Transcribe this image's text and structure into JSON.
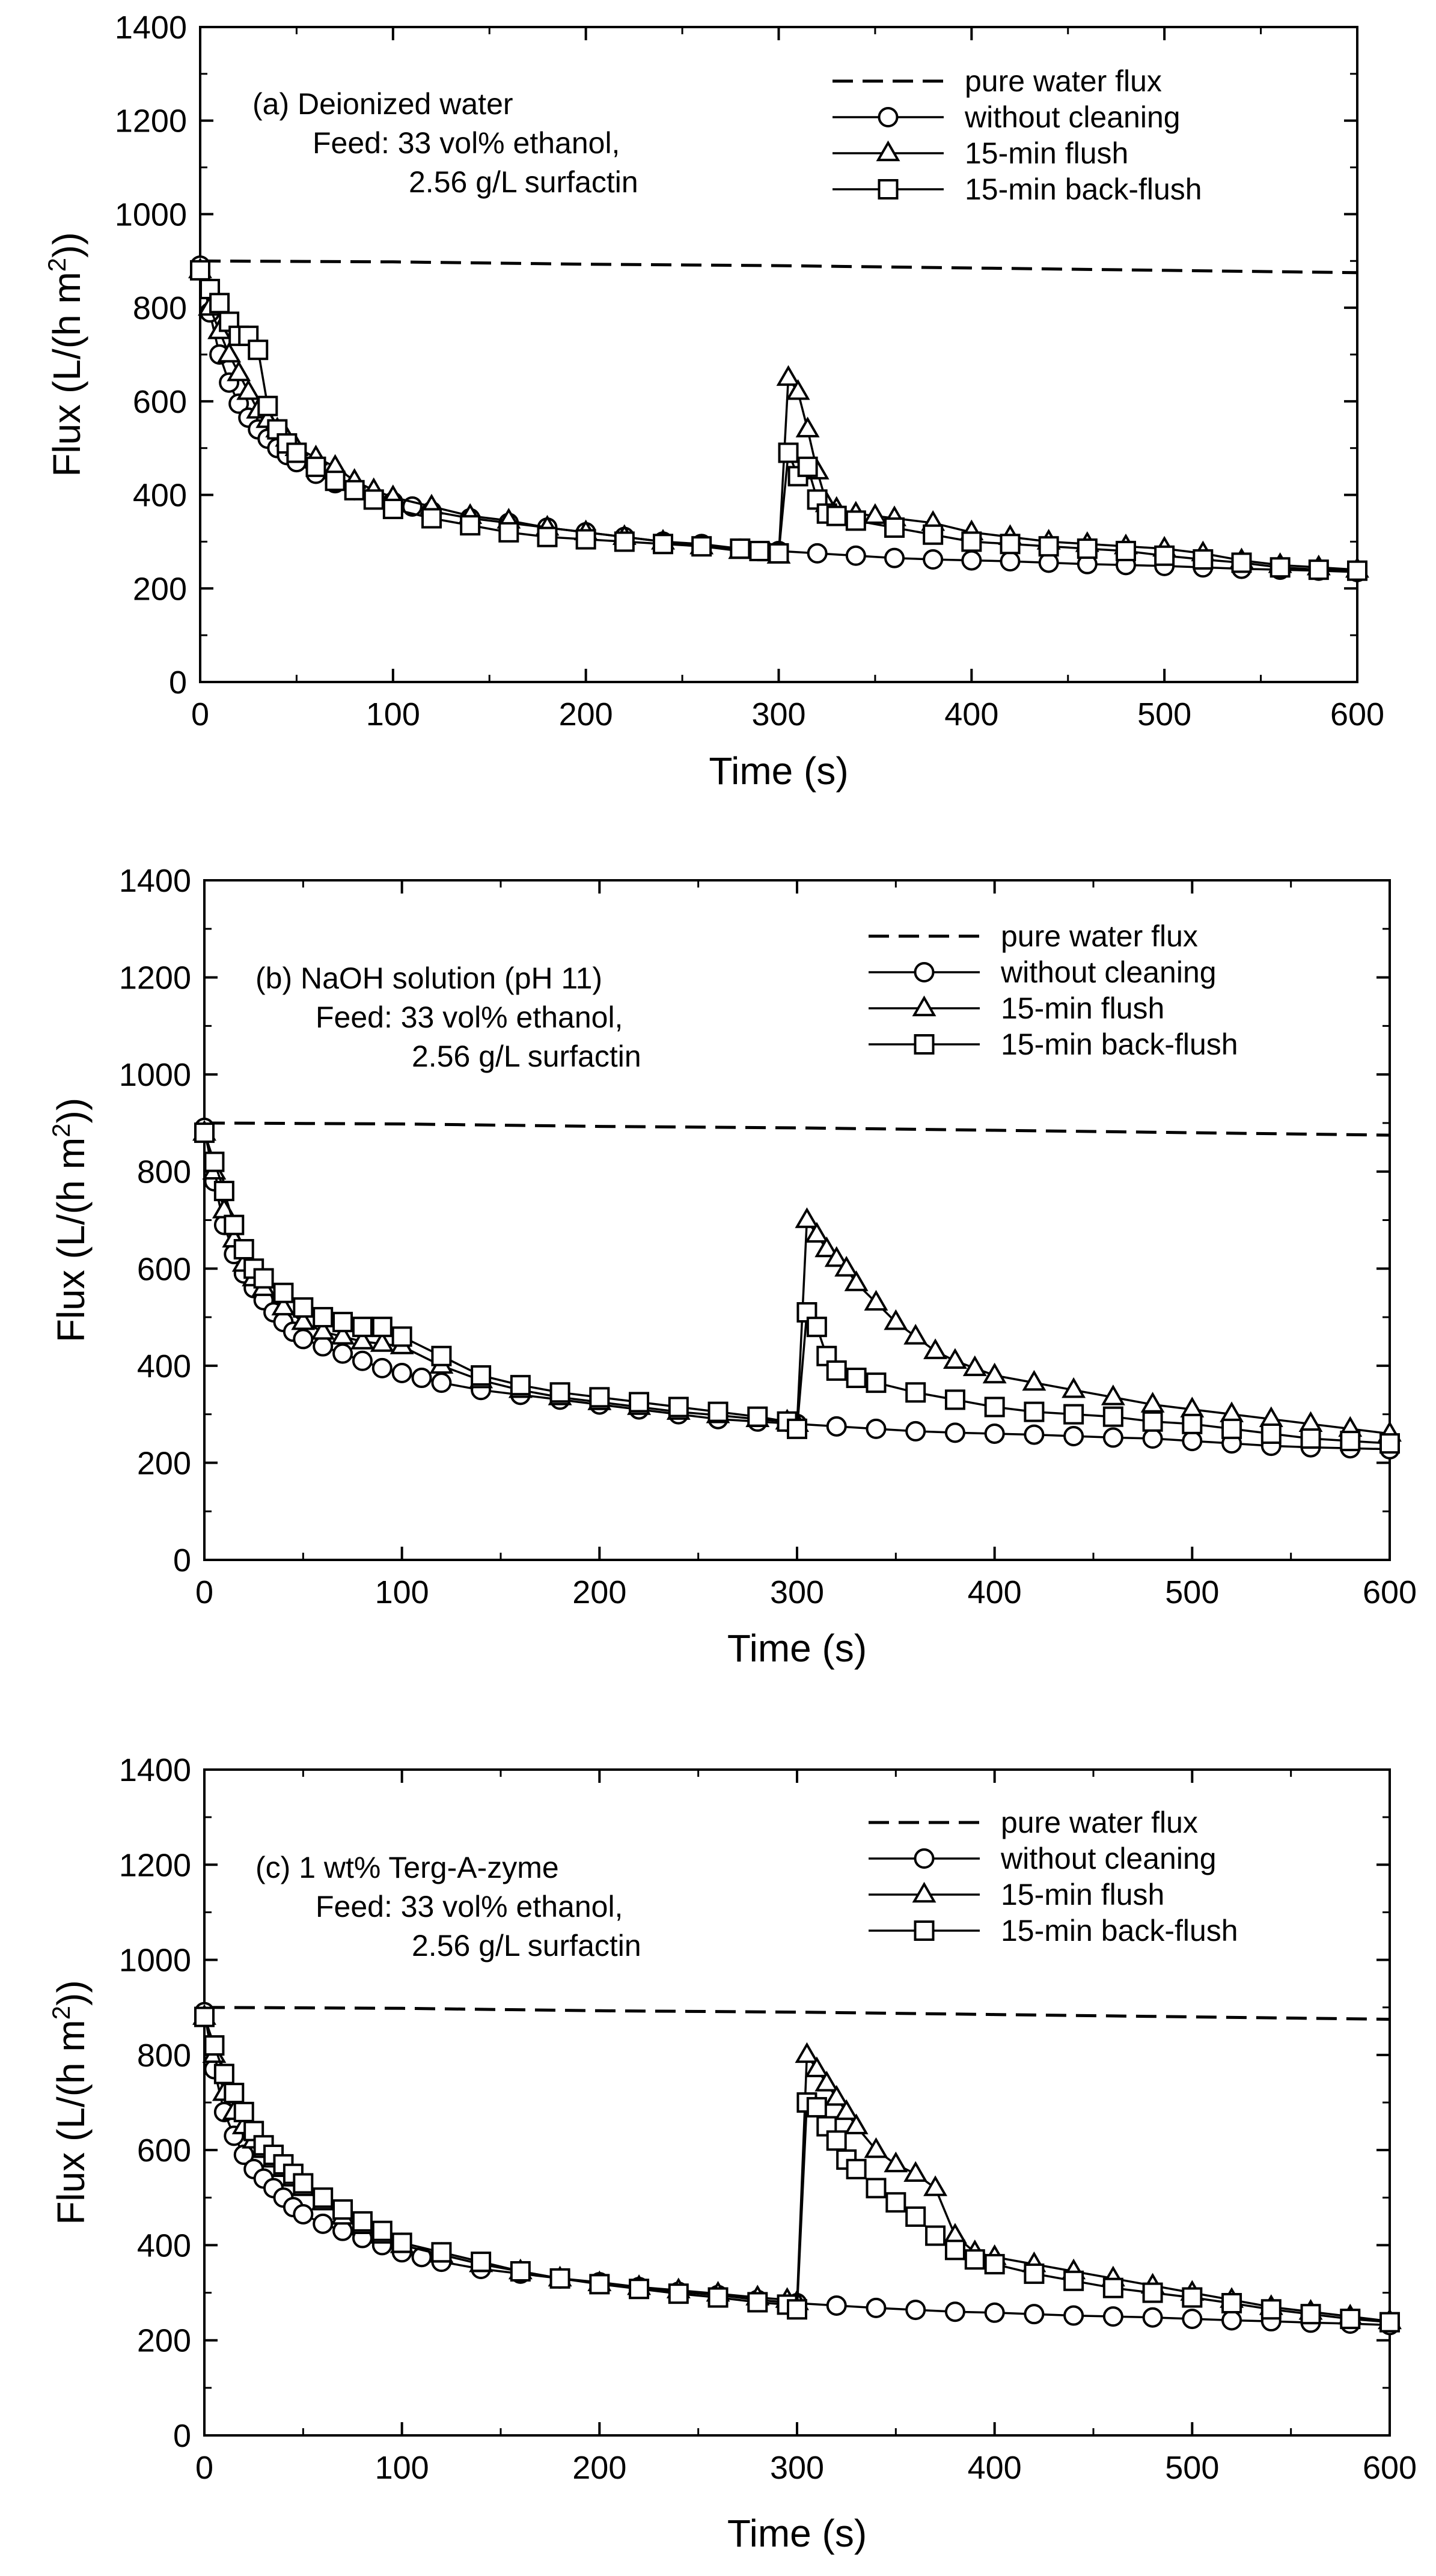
{
  "colors": {
    "ink": "#000000",
    "background": "#ffffff",
    "marker_fill": "#ffffff"
  },
  "chart_data": [
    {
      "id": "a",
      "type": "line",
      "xlabel": "Time (s)",
      "ylabel_main": "Flux (L/(h m",
      "ylabel_sup": "2",
      "ylabel_tail": "))",
      "xlim": [
        0,
        600
      ],
      "ylim": [
        0,
        1400
      ],
      "xticks": [
        0,
        100,
        200,
        300,
        400,
        500,
        600
      ],
      "yticks": [
        0,
        200,
        400,
        600,
        800,
        1000,
        1200,
        1400
      ],
      "annotations": [
        "(a) Deionized water",
        "Feed: 33 vol% ethanol,",
        "2.56 g/L surfactin"
      ],
      "legend": [
        "pure water flux",
        "without cleaning",
        "15-min flush",
        "15-min back-flush"
      ],
      "series": [
        {
          "name": "pure water flux",
          "style": "dashed",
          "x": [
            0,
            100,
            200,
            300,
            400,
            500,
            600
          ],
          "y": [
            900,
            898,
            893,
            890,
            885,
            880,
            875
          ]
        },
        {
          "name": "without cleaning",
          "marker": "circle",
          "x": [
            0,
            5,
            10,
            15,
            20,
            25,
            30,
            35,
            40,
            45,
            50,
            60,
            70,
            80,
            90,
            100,
            110,
            120,
            140,
            160,
            180,
            200,
            220,
            240,
            260,
            280,
            300,
            320,
            340,
            360,
            380,
            400,
            420,
            440,
            460,
            480,
            500,
            520,
            540,
            560,
            580,
            600
          ],
          "y": [
            890,
            790,
            700,
            640,
            595,
            565,
            540,
            520,
            500,
            485,
            470,
            445,
            425,
            410,
            395,
            385,
            375,
            365,
            350,
            340,
            330,
            320,
            310,
            300,
            295,
            285,
            280,
            275,
            270,
            265,
            262,
            260,
            258,
            255,
            252,
            250,
            248,
            245,
            242,
            240,
            238,
            235
          ]
        },
        {
          "name": "15-min flush",
          "marker": "triangle",
          "x": [
            0,
            5,
            10,
            15,
            20,
            25,
            30,
            35,
            40,
            45,
            50,
            60,
            70,
            80,
            90,
            100,
            120,
            140,
            160,
            180,
            200,
            220,
            240,
            260,
            280,
            295,
            300,
            305,
            310,
            315,
            320,
            325,
            330,
            340,
            350,
            360,
            380,
            400,
            420,
            440,
            460,
            480,
            500,
            520,
            540,
            560,
            580,
            600
          ],
          "y": [
            880,
            800,
            750,
            700,
            660,
            620,
            580,
            560,
            540,
            520,
            500,
            480,
            460,
            430,
            410,
            395,
            375,
            355,
            345,
            330,
            320,
            310,
            300,
            290,
            280,
            275,
            270,
            650,
            620,
            540,
            450,
            380,
            370,
            360,
            355,
            350,
            340,
            320,
            310,
            300,
            295,
            290,
            285,
            275,
            260,
            250,
            245,
            240
          ]
        },
        {
          "name": "15-min back-flush",
          "marker": "square",
          "x": [
            0,
            5,
            10,
            15,
            20,
            25,
            30,
            35,
            40,
            45,
            50,
            60,
            70,
            80,
            90,
            100,
            120,
            140,
            160,
            180,
            200,
            220,
            240,
            260,
            280,
            290,
            300,
            305,
            310,
            315,
            320,
            325,
            330,
            340,
            360,
            380,
            400,
            420,
            440,
            460,
            480,
            500,
            520,
            540,
            560,
            580,
            600
          ],
          "y": [
            880,
            840,
            810,
            770,
            740,
            740,
            710,
            590,
            540,
            510,
            490,
            460,
            430,
            410,
            390,
            370,
            350,
            335,
            320,
            310,
            305,
            300,
            295,
            290,
            285,
            280,
            275,
            490,
            440,
            460,
            390,
            360,
            355,
            345,
            330,
            315,
            300,
            295,
            290,
            285,
            280,
            270,
            262,
            255,
            245,
            240,
            238
          ]
        }
      ]
    },
    {
      "id": "b",
      "type": "line",
      "xlabel": "Time (s)",
      "ylabel_main": "Flux (L/(h m",
      "ylabel_sup": "2",
      "ylabel_tail": "))",
      "xlim": [
        0,
        600
      ],
      "ylim": [
        0,
        1400
      ],
      "xticks": [
        0,
        100,
        200,
        300,
        400,
        500,
        600
      ],
      "yticks": [
        0,
        200,
        400,
        600,
        800,
        1000,
        1200,
        1400
      ],
      "annotations": [
        "(b) NaOH solution (pH 11)",
        "Feed: 33 vol% ethanol,",
        "2.56 g/L surfactin"
      ],
      "legend": [
        "pure water flux",
        "without cleaning",
        "15-min flush",
        "15-min back-flush"
      ],
      "series": [
        {
          "name": "pure water flux",
          "style": "dashed",
          "x": [
            0,
            100,
            200,
            300,
            400,
            500,
            600
          ],
          "y": [
            900,
            898,
            893,
            890,
            885,
            880,
            875
          ]
        },
        {
          "name": "without cleaning",
          "marker": "circle",
          "x": [
            0,
            5,
            10,
            15,
            20,
            25,
            30,
            35,
            40,
            45,
            50,
            60,
            70,
            80,
            90,
            100,
            110,
            120,
            140,
            160,
            180,
            200,
            220,
            240,
            260,
            280,
            300,
            320,
            340,
            360,
            380,
            400,
            420,
            440,
            460,
            480,
            500,
            520,
            540,
            560,
            580,
            600
          ],
          "y": [
            890,
            780,
            690,
            630,
            590,
            560,
            535,
            510,
            490,
            470,
            455,
            440,
            425,
            410,
            395,
            385,
            375,
            365,
            350,
            340,
            330,
            320,
            310,
            300,
            290,
            285,
            280,
            275,
            270,
            265,
            262,
            260,
            258,
            255,
            252,
            250,
            245,
            240,
            235,
            232,
            230,
            228
          ]
        },
        {
          "name": "15-min flush",
          "marker": "triangle",
          "x": [
            0,
            5,
            10,
            15,
            20,
            25,
            30,
            40,
            50,
            60,
            70,
            80,
            90,
            100,
            120,
            140,
            160,
            180,
            200,
            220,
            240,
            260,
            280,
            295,
            300,
            305,
            310,
            315,
            320,
            325,
            330,
            340,
            350,
            360,
            370,
            380,
            390,
            400,
            420,
            440,
            460,
            480,
            500,
            520,
            540,
            560,
            580,
            600
          ],
          "y": [
            880,
            800,
            720,
            660,
            610,
            580,
            560,
            520,
            490,
            470,
            460,
            450,
            445,
            440,
            400,
            370,
            350,
            335,
            325,
            315,
            305,
            298,
            290,
            285,
            280,
            700,
            670,
            640,
            620,
            600,
            570,
            530,
            490,
            460,
            430,
            410,
            395,
            380,
            365,
            350,
            335,
            320,
            310,
            300,
            290,
            280,
            270,
            260
          ]
        },
        {
          "name": "15-min back-flush",
          "marker": "square",
          "x": [
            0,
            5,
            10,
            15,
            20,
            25,
            30,
            40,
            50,
            60,
            70,
            80,
            90,
            100,
            120,
            140,
            160,
            180,
            200,
            220,
            240,
            260,
            280,
            295,
            300,
            305,
            310,
            315,
            320,
            330,
            340,
            360,
            380,
            400,
            420,
            440,
            460,
            480,
            500,
            520,
            540,
            560,
            580,
            600
          ],
          "y": [
            880,
            820,
            760,
            690,
            640,
            600,
            580,
            550,
            520,
            500,
            490,
            480,
            480,
            460,
            420,
            380,
            360,
            345,
            335,
            325,
            315,
            305,
            295,
            285,
            270,
            510,
            480,
            420,
            390,
            375,
            365,
            345,
            330,
            315,
            305,
            300,
            295,
            285,
            280,
            270,
            260,
            250,
            245,
            240
          ]
        }
      ]
    },
    {
      "id": "c",
      "type": "line",
      "xlabel": "Time (s)",
      "ylabel_main": "Flux (L/(h m",
      "ylabel_sup": "2",
      "ylabel_tail": "))",
      "xlim": [
        0,
        600
      ],
      "ylim": [
        0,
        1400
      ],
      "xticks": [
        0,
        100,
        200,
        300,
        400,
        500,
        600
      ],
      "yticks": [
        0,
        200,
        400,
        600,
        800,
        1000,
        1200,
        1400
      ],
      "annotations": [
        "(c) 1 wt% Terg-A-zyme",
        "Feed: 33 vol% ethanol,",
        "2.56 g/L surfactin"
      ],
      "legend": [
        "pure water flux",
        "without cleaning",
        "15-min flush",
        "15-min back-flush"
      ],
      "series": [
        {
          "name": "pure water flux",
          "style": "dashed",
          "x": [
            0,
            100,
            200,
            300,
            400,
            500,
            600
          ],
          "y": [
            900,
            898,
            893,
            890,
            885,
            880,
            875
          ]
        },
        {
          "name": "without cleaning",
          "marker": "circle",
          "x": [
            0,
            5,
            10,
            15,
            20,
            25,
            30,
            35,
            40,
            45,
            50,
            60,
            70,
            80,
            90,
            100,
            110,
            120,
            140,
            160,
            180,
            200,
            220,
            240,
            260,
            280,
            300,
            320,
            340,
            360,
            380,
            400,
            420,
            440,
            460,
            480,
            500,
            520,
            540,
            560,
            580,
            600
          ],
          "y": [
            890,
            770,
            680,
            630,
            590,
            560,
            540,
            520,
            500,
            480,
            465,
            445,
            430,
            415,
            400,
            385,
            375,
            365,
            350,
            340,
            330,
            322,
            312,
            302,
            295,
            285,
            278,
            273,
            268,
            264,
            260,
            258,
            255,
            252,
            250,
            248,
            245,
            242,
            240,
            237,
            235,
            232
          ]
        },
        {
          "name": "15-min flush",
          "marker": "triangle",
          "x": [
            0,
            5,
            10,
            15,
            20,
            25,
            30,
            35,
            40,
            45,
            50,
            60,
            70,
            80,
            90,
            100,
            120,
            140,
            160,
            180,
            200,
            220,
            240,
            260,
            280,
            295,
            300,
            305,
            310,
            315,
            320,
            325,
            330,
            340,
            350,
            360,
            370,
            380,
            390,
            400,
            420,
            440,
            460,
            480,
            500,
            520,
            540,
            560,
            580,
            600
          ],
          "y": [
            880,
            800,
            720,
            680,
            650,
            620,
            600,
            580,
            560,
            540,
            520,
            490,
            460,
            440,
            420,
            400,
            380,
            360,
            345,
            330,
            320,
            312,
            305,
            298,
            290,
            285,
            280,
            800,
            770,
            740,
            710,
            680,
            650,
            600,
            570,
            550,
            520,
            420,
            385,
            375,
            360,
            345,
            330,
            315,
            300,
            285,
            270,
            260,
            250,
            240
          ]
        },
        {
          "name": "15-min back-flush",
          "marker": "square",
          "x": [
            0,
            5,
            10,
            15,
            20,
            25,
            30,
            35,
            40,
            45,
            50,
            60,
            70,
            80,
            90,
            100,
            120,
            140,
            160,
            180,
            200,
            220,
            240,
            260,
            280,
            295,
            300,
            305,
            310,
            315,
            320,
            325,
            330,
            340,
            350,
            360,
            370,
            380,
            390,
            400,
            420,
            440,
            460,
            480,
            500,
            520,
            540,
            560,
            580,
            600
          ],
          "y": [
            880,
            820,
            760,
            720,
            680,
            640,
            610,
            590,
            570,
            550,
            530,
            500,
            475,
            450,
            430,
            405,
            385,
            365,
            345,
            330,
            318,
            308,
            298,
            290,
            280,
            275,
            265,
            700,
            690,
            650,
            620,
            580,
            560,
            520,
            490,
            460,
            420,
            390,
            370,
            360,
            340,
            325,
            310,
            300,
            290,
            278,
            265,
            255,
            245,
            238
          ]
        }
      ]
    }
  ]
}
